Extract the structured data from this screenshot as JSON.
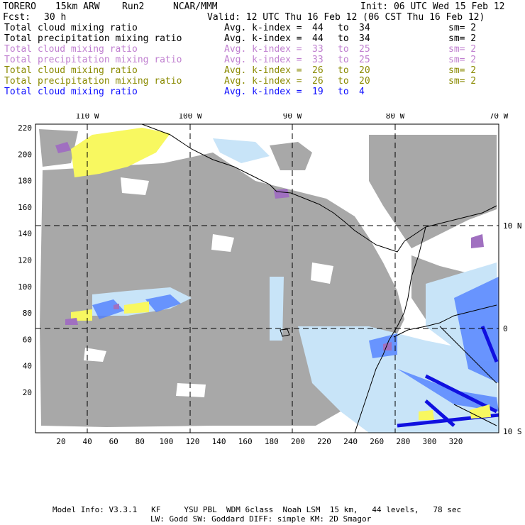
{
  "header": {
    "model": "TORERO",
    "resolution": "15km ARW",
    "run": "Run2",
    "org": "NCAR/MMM",
    "init": "Init: 06 UTC Wed 15 Feb 12",
    "fcst_label": "Fcst:",
    "fcst_value": "30 h",
    "valid": "Valid: 12 UTC Thu 16 Feb 12 (06 CST Thu 16 Feb 12)"
  },
  "legend": [
    {
      "field": "Total cloud mixing ratio",
      "avg_label": "Avg. k-index =",
      "k_from": "44",
      "to": "to",
      "k_to": "34",
      "sm": "sm= 2",
      "color": "#000000"
    },
    {
      "field": "Total precipitation mixing ratio",
      "avg_label": "Avg. k-index =",
      "k_from": "44",
      "to": "to",
      "k_to": "34",
      "sm": "sm= 2",
      "color": "#000000"
    },
    {
      "field": "Total cloud mixing ratio",
      "avg_label": "Avg. k-index =",
      "k_from": "33",
      "to": "to",
      "k_to": "25",
      "sm": "sm= 2",
      "color": "#c080d0"
    },
    {
      "field": "Total precipitation mixing ratio",
      "avg_label": "Avg. k-index =",
      "k_from": "33",
      "to": "to",
      "k_to": "25",
      "sm": "sm= 2",
      "color": "#c080d0"
    },
    {
      "field": "Total cloud mixing ratio",
      "avg_label": "Avg. k-index =",
      "k_from": "26",
      "to": "to",
      "k_to": "20",
      "sm": "sm= 2",
      "color": "#8a8a00"
    },
    {
      "field": "Total precipitation mixing ratio",
      "avg_label": "Avg. k-index =",
      "k_from": "26",
      "to": "to",
      "k_to": "20",
      "sm": "sm= 2",
      "color": "#8a8a00"
    },
    {
      "field": "Total cloud mixing ratio",
      "avg_label": "Avg. k-index =",
      "k_from": "19",
      "to": "to",
      "k_to": "4",
      "sm": "",
      "color": "#1010ff"
    }
  ],
  "map": {
    "lon_labels": [
      "110 W",
      "100 W",
      "90 W",
      "80 W",
      "70 W"
    ],
    "lat_labels": [
      "10 N",
      "0",
      "10 S"
    ],
    "y_ticks": [
      "220",
      "200",
      "180",
      "160",
      "140",
      "120",
      "100",
      "80",
      "60",
      "40",
      "20"
    ],
    "x_ticks": [
      "20",
      "40",
      "60",
      "80",
      "100",
      "120",
      "140",
      "160",
      "180",
      "200",
      "220",
      "240",
      "260",
      "280",
      "300",
      "320"
    ],
    "colors": {
      "cloud_gray": "#a8a8a8",
      "light_blue": "#c8e4f8",
      "mid_blue": "#5080ff",
      "deep_blue": "#1010e0",
      "yellow": "#f8f860",
      "purple": "#a070c0",
      "coast": "#000000"
    }
  },
  "footer": {
    "line1": "Model Info: V3.3.1   KF     YSU PBL  WDM 6class  Noah LSM  15 km,   44 levels,   78 sec",
    "line2": "LW: Godd SW: Goddard DIFF: simple KM: 2D Smagor"
  }
}
